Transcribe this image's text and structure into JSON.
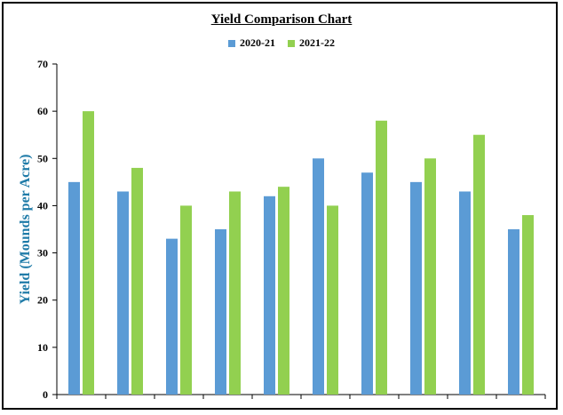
{
  "chart_data": {
    "type": "bar",
    "title": "Yield Comparison Chart",
    "xlabel": "",
    "ylabel": "Yield (Mounds per Acre)",
    "ylim": [
      0,
      70
    ],
    "yticks": [
      0,
      10,
      20,
      30,
      40,
      50,
      60,
      70
    ],
    "categories": [
      "",
      "",
      "",
      "",
      "",
      "",
      "",
      "",
      "",
      ""
    ],
    "series": [
      {
        "name": "2020-21",
        "color": "#5B9BD5",
        "values": [
          45,
          43,
          33,
          35,
          42,
          50,
          47,
          45,
          43,
          35
        ]
      },
      {
        "name": "2021-22",
        "color": "#92D050",
        "values": [
          60,
          48,
          40,
          43,
          44,
          40,
          58,
          50,
          55,
          38
        ]
      }
    ],
    "grid": false,
    "legend_position": "top"
  },
  "colors": {
    "axis": "#000000",
    "ylabel": "#1F7BA8"
  }
}
